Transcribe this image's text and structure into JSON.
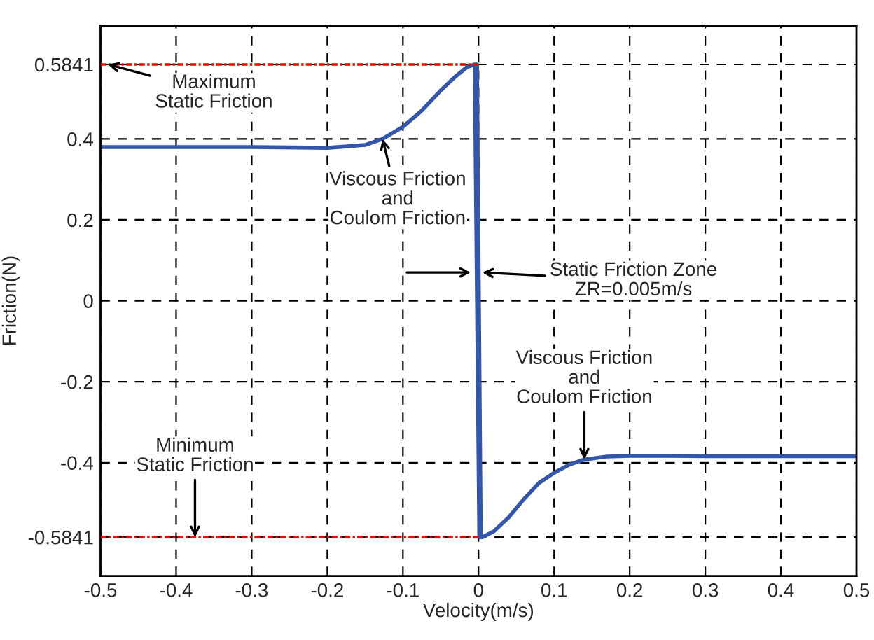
{
  "chart_data": {
    "type": "line",
    "xlabel": "Velocity(m/s)",
    "ylabel": "Friction(N)",
    "xlim": [
      -0.5,
      0.5
    ],
    "ylim": [
      -0.68,
      0.68
    ],
    "xticks": [
      -0.5,
      -0.4,
      -0.3,
      -0.2,
      -0.1,
      0,
      0.1,
      0.2,
      0.3,
      0.4,
      0.5
    ],
    "yticks": [
      -0.5841,
      -0.4,
      -0.2,
      0,
      0.2,
      0.4,
      0.5841
    ],
    "grid": true,
    "legend": false,
    "series": [
      {
        "color": "#ff0000",
        "line_style": "dashed",
        "x": [
          -0.5,
          0
        ],
        "values": [
          0.5841,
          0.5841
        ]
      },
      {
        "color": "#ff0000",
        "line_style": "dashed",
        "x": [
          -0.5,
          0
        ],
        "values": [
          -0.5841,
          -0.5841
        ]
      },
      {
        "color": "#3355aa",
        "line_style": "solid",
        "x": [
          -0.5,
          -0.3,
          -0.2,
          -0.15,
          -0.127,
          -0.1,
          -0.075,
          -0.05,
          -0.03,
          -0.015,
          -0.005,
          0.001,
          -0.003,
          0.002,
          -0.002,
          0.003,
          0.005,
          0.02,
          0.04,
          0.06,
          0.08,
          0.1,
          0.12,
          0.14,
          0.17,
          0.2,
          0.25,
          0.3,
          0.5
        ],
        "values": [
          0.38,
          0.38,
          0.378,
          0.385,
          0.4,
          0.43,
          0.47,
          0.52,
          0.555,
          0.578,
          0.5841,
          -0.5841,
          0.5841,
          -0.5841,
          0.5841,
          -0.5841,
          -0.5841,
          -0.57,
          -0.535,
          -0.49,
          -0.45,
          -0.425,
          -0.405,
          -0.392,
          -0.385,
          -0.383,
          -0.383,
          -0.384,
          -0.384
        ]
      }
    ],
    "annotations": [
      {
        "text": "Maximum\nStatic Friction",
        "x": -0.49,
        "y": 0.5841
      },
      {
        "text": "Viscous Friction\nand\nCoulom Friction",
        "x": -0.127,
        "y": 0.4
      },
      {
        "text": "Static Friction Zone\nZR=0.005m/s",
        "x": 0.005,
        "y": 0.07
      },
      {
        "text": "Viscous Friction\nand\nCoulom Friction",
        "x": 0.14,
        "y": -0.392
      },
      {
        "text": "Minimum\nStatic Friction",
        "x": -0.375,
        "y": -0.5841
      }
    ]
  }
}
